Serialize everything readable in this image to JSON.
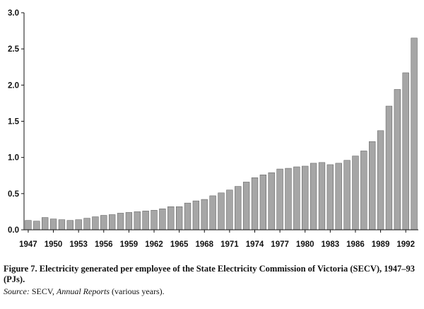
{
  "chart_data": {
    "type": "bar",
    "bar_color": "#a6a6a6",
    "categories": [
      "1947",
      "1948",
      "1949",
      "1950",
      "1951",
      "1952",
      "1953",
      "1954",
      "1955",
      "1956",
      "1957",
      "1958",
      "1959",
      "1960",
      "1961",
      "1962",
      "1963",
      "1964",
      "1965",
      "1966",
      "1967",
      "1968",
      "1969",
      "1970",
      "1971",
      "1972",
      "1973",
      "1974",
      "1975",
      "1976",
      "1977",
      "1978",
      "1979",
      "1980",
      "1981",
      "1982",
      "1983",
      "1984",
      "1985",
      "1986",
      "1987",
      "1988",
      "1989",
      "1990",
      "1991",
      "1992",
      "1993"
    ],
    "values": [
      0.13,
      0.12,
      0.17,
      0.15,
      0.14,
      0.13,
      0.14,
      0.16,
      0.18,
      0.2,
      0.21,
      0.23,
      0.24,
      0.25,
      0.26,
      0.27,
      0.29,
      0.32,
      0.32,
      0.37,
      0.4,
      0.42,
      0.47,
      0.51,
      0.55,
      0.6,
      0.66,
      0.72,
      0.76,
      0.79,
      0.84,
      0.85,
      0.87,
      0.88,
      0.92,
      0.93,
      0.9,
      0.92,
      0.96,
      1.02,
      1.09,
      1.22,
      1.37,
      1.71,
      1.94,
      2.17,
      2.65
    ],
    "x_tick_labels": [
      "1947",
      "1950",
      "1953",
      "1956",
      "1959",
      "1962",
      "1965",
      "1968",
      "1971",
      "1974",
      "1977",
      "1980",
      "1983",
      "1986",
      "1989",
      "1992"
    ],
    "y_tick_labels": [
      "0.0",
      "0.5",
      "1.0",
      "1.5",
      "2.0",
      "2.5",
      "3.0"
    ],
    "ylim": [
      0,
      3.0
    ],
    "grid": false,
    "title": "",
    "xlabel": "",
    "ylabel": ""
  },
  "caption": {
    "figure": "Figure 7.  Electricity generated per employee of the State Electricity Commission of Victoria (SECV), 1947–93 (PJs).",
    "source_label": "Source:",
    "source_org": "  SECV, ",
    "source_title": "Annual Reports",
    "source_rest": " (various years)."
  }
}
